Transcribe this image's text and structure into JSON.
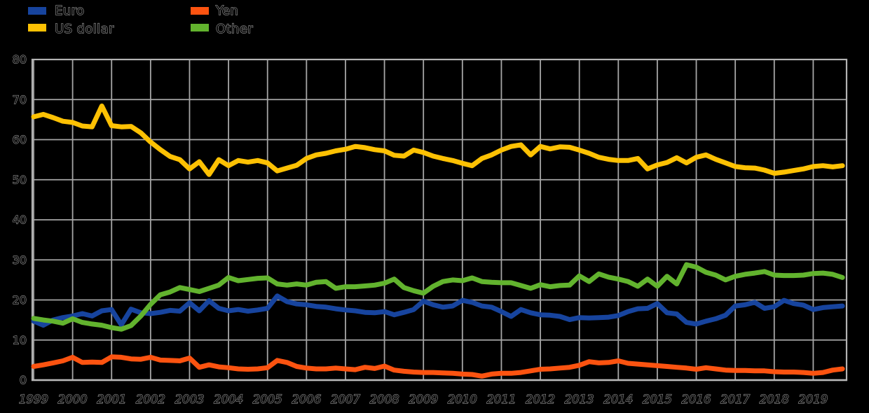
{
  "page": {
    "background": "#000000"
  },
  "chart_data": {
    "type": "line",
    "title": "",
    "xlabel": "",
    "ylabel": "",
    "unit": "percent share",
    "x_start": 1999,
    "x_step_years": 0.25,
    "x_tick_labels": [
      "1999",
      "2000",
      "2001",
      "2002",
      "2003",
      "2004",
      "2005",
      "2006",
      "2007",
      "2008",
      "2009",
      "2010",
      "2011",
      "2012",
      "2013",
      "2014",
      "2015",
      "2016",
      "2017",
      "2018",
      "2019"
    ],
    "y_ticks": [
      0,
      10,
      20,
      30,
      40,
      50,
      60,
      70,
      80
    ],
    "ylim": [
      0,
      80
    ],
    "grid": true,
    "grid_color": "#a6a6a6",
    "axis_color": "#b3b3b3",
    "tick_text_outline_color": "#9c9c9c",
    "legend_position": "top-left",
    "legend_columns": [
      [
        "Euro",
        "US dollar"
      ],
      [
        "Yen",
        "Other"
      ]
    ],
    "line_width": 7,
    "series": [
      {
        "name": "Euro",
        "color": "#17449e",
        "values": [
          14.7,
          13.7,
          15.0,
          15.6,
          16.0,
          16.6,
          16.0,
          17.3,
          17.6,
          13.8,
          17.7,
          16.8,
          16.6,
          16.9,
          17.4,
          17.2,
          19.3,
          17.3,
          19.8,
          17.9,
          17.3,
          17.6,
          17.2,
          17.5,
          17.9,
          21.0,
          19.6,
          19.0,
          18.8,
          18.4,
          18.2,
          17.8,
          17.5,
          17.3,
          16.9,
          16.8,
          17.1,
          16.3,
          16.9,
          17.6,
          19.7,
          18.8,
          18.2,
          18.5,
          19.9,
          19.4,
          18.5,
          18.2,
          17.1,
          15.9,
          17.6,
          16.8,
          16.3,
          16.2,
          15.9,
          15.1,
          15.6,
          15.5,
          15.6,
          15.7,
          16.1,
          17.1,
          17.8,
          17.9,
          19.1,
          16.8,
          16.5,
          14.4,
          14.0,
          14.7,
          15.3,
          16.2,
          18.5,
          18.8,
          19.4,
          17.9,
          18.3,
          19.9,
          19.1,
          18.7,
          17.6,
          18.1,
          18.3,
          18.5
        ]
      },
      {
        "name": "US dollar",
        "color": "#fdc103",
        "values": [
          65.7,
          66.3,
          65.5,
          64.6,
          64.3,
          63.4,
          63.2,
          68.4,
          63.5,
          63.2,
          63.3,
          61.7,
          59.4,
          57.5,
          55.8,
          55.0,
          52.7,
          54.5,
          51.3,
          55.0,
          53.5,
          54.8,
          54.4,
          54.8,
          54.2,
          52.2,
          52.9,
          53.6,
          55.3,
          56.2,
          56.6,
          57.2,
          57.6,
          58.3,
          58.0,
          57.5,
          57.2,
          56.1,
          55.9,
          57.4,
          56.8,
          55.9,
          55.3,
          54.8,
          54.1,
          53.5,
          55.3,
          56.2,
          57.4,
          58.3,
          58.7,
          56.2,
          58.3,
          57.7,
          58.2,
          58.1,
          57.4,
          56.6,
          55.6,
          55.1,
          54.8,
          54.8,
          55.3,
          52.7,
          53.7,
          54.3,
          55.5,
          54.2,
          55.6,
          56.2,
          55.1,
          54.2,
          53.3,
          53.0,
          52.9,
          52.4,
          51.6,
          51.9,
          52.3,
          52.7,
          53.3,
          53.5,
          53.2,
          53.5
        ]
      },
      {
        "name": "Yen",
        "color": "#fc5310",
        "values": [
          3.4,
          3.8,
          4.3,
          4.8,
          5.7,
          4.4,
          4.5,
          4.4,
          5.8,
          5.7,
          5.3,
          5.2,
          5.7,
          5.0,
          4.9,
          4.8,
          5.5,
          3.2,
          3.8,
          3.3,
          3.1,
          2.8,
          2.7,
          2.8,
          3.1,
          4.9,
          4.4,
          3.4,
          3.0,
          2.8,
          2.8,
          3.0,
          2.8,
          2.6,
          3.2,
          2.9,
          3.5,
          2.5,
          2.2,
          2.0,
          1.9,
          1.9,
          1.8,
          1.7,
          1.5,
          1.4,
          1.0,
          1.5,
          1.7,
          1.7,
          1.9,
          2.3,
          2.7,
          2.8,
          3.0,
          3.2,
          3.7,
          4.6,
          4.3,
          4.4,
          4.8,
          4.2,
          4.0,
          3.8,
          3.6,
          3.4,
          3.2,
          3.0,
          2.7,
          3.1,
          2.8,
          2.5,
          2.4,
          2.4,
          2.3,
          2.3,
          2.1,
          2.0,
          2.0,
          1.9,
          1.7,
          1.9,
          2.5,
          2.8
        ]
      },
      {
        "name": "Other",
        "color": "#62b32e",
        "values": [
          15.4,
          15.0,
          14.7,
          14.2,
          15.3,
          14.4,
          14.0,
          13.7,
          13.1,
          12.7,
          13.6,
          16.0,
          18.9,
          21.3,
          22.0,
          23.1,
          22.6,
          22.1,
          22.9,
          23.7,
          25.6,
          24.8,
          25.1,
          25.4,
          25.5,
          24.0,
          23.7,
          24.0,
          23.7,
          24.4,
          24.6,
          22.9,
          23.3,
          23.3,
          23.5,
          23.7,
          24.2,
          25.2,
          23.1,
          22.3,
          21.7,
          23.4,
          24.6,
          25.0,
          24.8,
          25.5,
          24.6,
          24.4,
          24.3,
          24.3,
          23.6,
          22.9,
          23.8,
          23.3,
          23.6,
          23.7,
          26.0,
          24.6,
          26.5,
          25.7,
          25.2,
          24.6,
          23.4,
          25.2,
          23.4,
          25.9,
          24.0,
          28.8,
          28.2,
          26.9,
          26.2,
          25.0,
          25.9,
          26.4,
          26.7,
          27.1,
          26.2,
          26.1,
          26.1,
          26.2,
          26.6,
          26.7,
          26.4,
          25.6
        ]
      }
    ]
  }
}
